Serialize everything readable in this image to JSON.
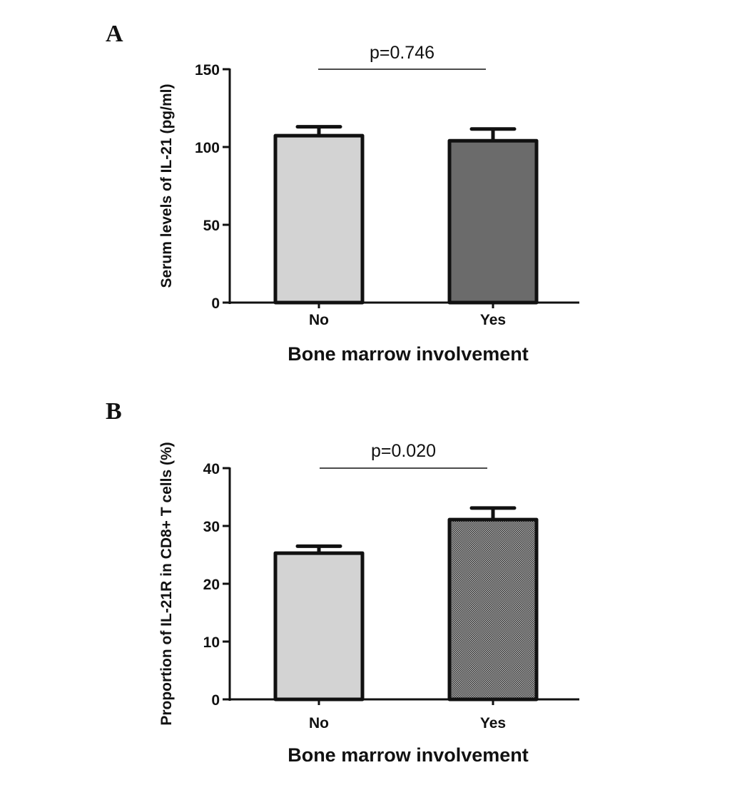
{
  "chart_data": [
    {
      "type": "bar",
      "panel_label": "A",
      "categories": [
        "No",
        "Yes"
      ],
      "values": [
        107.3,
        104.0
      ],
      "error_upper": [
        113.0,
        111.6
      ],
      "fills": [
        "#d3d3d3",
        "#6b6b6b"
      ],
      "patterns": [
        "solid",
        "solid"
      ],
      "xlabel": "Bone marrow involvement",
      "ylabel": "Serum levels of IL-21 (pg/ml)",
      "ylim": [
        0,
        150
      ],
      "yticks": [
        0,
        50,
        100,
        150
      ],
      "ytick_labels": [
        "0",
        "50",
        "100",
        "150"
      ],
      "annotation": "p=0.746",
      "grid": false
    },
    {
      "type": "bar",
      "panel_label": "B",
      "categories": [
        "No",
        "Yes"
      ],
      "values": [
        25.3,
        31.1
      ],
      "error_upper": [
        26.5,
        33.1
      ],
      "fills": [
        "#d3d3d3",
        "#8a8a8a"
      ],
      "patterns": [
        "solid",
        "checker"
      ],
      "xlabel": "Bone marrow involvement",
      "ylabel": "Proportion of IL-21R in CD8+ T cells (%)",
      "ylim": [
        0,
        40
      ],
      "yticks": [
        0,
        10,
        20,
        30,
        40
      ],
      "ytick_labels": [
        "0",
        "10",
        "20",
        "30",
        "40"
      ],
      "annotation": "p=0.020",
      "grid": false
    }
  ]
}
